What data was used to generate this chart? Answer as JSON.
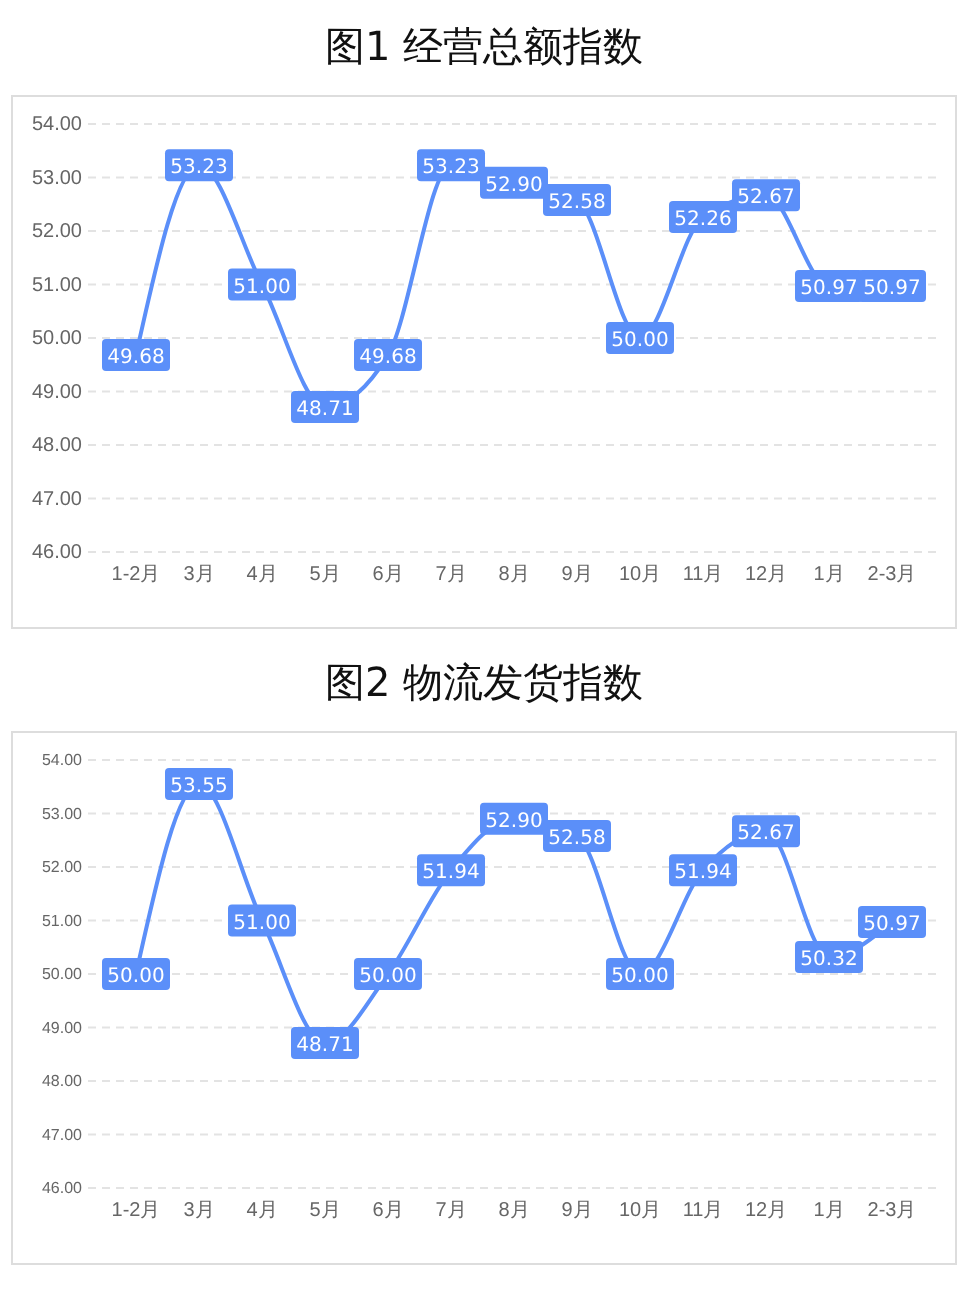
{
  "chart_data": [
    {
      "type": "line",
      "title": "图1  经营总额指数",
      "categories": [
        "1-2月",
        "3月",
        "4月",
        "5月",
        "6月",
        "7月",
        "8月",
        "9月",
        "10月",
        "11月",
        "12月",
        "1月",
        "2-3月"
      ],
      "series": [
        {
          "color": "#5b8ff9",
          "values": [
            49.68,
            53.23,
            51.0,
            48.71,
            49.68,
            53.23,
            52.9,
            52.58,
            50.0,
            52.26,
            52.67,
            50.97,
            50.97
          ],
          "value_labels": [
            "49.68",
            "53.23",
            "51.00",
            "48.71",
            "49.68",
            "53.23",
            "52.90",
            "52.58",
            "50.00",
            "52.26",
            "52.67",
            "50.97",
            "50.97"
          ]
        }
      ],
      "ylim": [
        46,
        54
      ],
      "yticks": [
        {
          "value": 46,
          "label": "46.00"
        },
        {
          "value": 47,
          "label": "47.00"
        },
        {
          "value": 48,
          "label": "48.00"
        },
        {
          "value": 49,
          "label": "49.00"
        },
        {
          "value": 50,
          "label": "50.00"
        },
        {
          "value": 51,
          "label": "51.00"
        },
        {
          "value": 52,
          "label": "52.00"
        },
        {
          "value": 53,
          "label": "53.00"
        },
        {
          "value": 54,
          "label": "54.00"
        }
      ],
      "grid": "y",
      "line_style": "solid",
      "marker": "square"
    },
    {
      "type": "line",
      "title": "图2  物流发货指数",
      "categories": [
        "1-2月",
        "3月",
        "4月",
        "5月",
        "6月",
        "7月",
        "8月",
        "9月",
        "10月",
        "11月",
        "12月",
        "1月",
        "2-3月"
      ],
      "series": [
        {
          "color": "#5b8ff9",
          "values": [
            50.0,
            53.55,
            51.0,
            48.71,
            50.0,
            51.94,
            52.9,
            52.58,
            50.0,
            51.94,
            52.67,
            50.32,
            50.97
          ],
          "value_labels": [
            "50.00",
            "53.55",
            "51.00",
            "48.71",
            "50.00",
            "51.94",
            "52.90",
            "52.58",
            "50.00",
            "51.94",
            "52.67",
            "50.32",
            "50.97"
          ]
        }
      ],
      "ylim": [
        46,
        54
      ],
      "yticks": [
        {
          "value": 46,
          "label": "46.00"
        },
        {
          "value": 47,
          "label": "47.00"
        },
        {
          "value": 48,
          "label": "48.00"
        },
        {
          "value": 49,
          "label": "49.00"
        },
        {
          "value": 50,
          "label": "50.00"
        },
        {
          "value": 51,
          "label": "51.00"
        },
        {
          "value": 52,
          "label": "52.00"
        },
        {
          "value": 53,
          "label": "53.00"
        },
        {
          "value": 54,
          "label": "54.00"
        }
      ],
      "grid": "y",
      "line_style": "solid",
      "marker": "square"
    }
  ]
}
